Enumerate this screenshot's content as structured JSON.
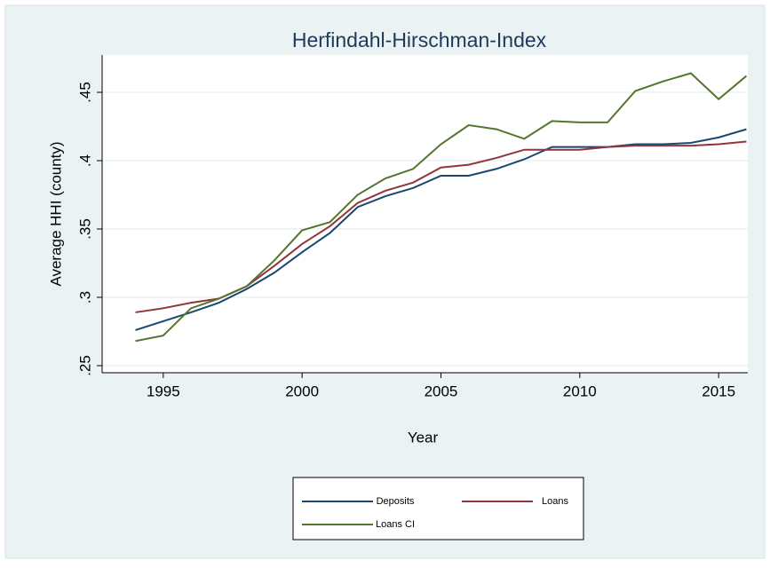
{
  "chart_data": {
    "type": "line",
    "title": "Herfindahl-Hirschman-Index",
    "x_label": "Year",
    "y_label": "Average HHI (county)",
    "x": [
      1994,
      1995,
      1996,
      1997,
      1998,
      1999,
      2000,
      2001,
      2002,
      2003,
      2004,
      2005,
      2006,
      2007,
      2008,
      2009,
      2010,
      2011,
      2012,
      2013,
      2014,
      2015,
      2016
    ],
    "series": [
      {
        "name": "Deposits",
        "color": "#1a476f",
        "values": [
          0.276,
          0.2825,
          0.289,
          0.296,
          0.306,
          0.318,
          0.333,
          0.347,
          0.366,
          0.374,
          0.38,
          0.389,
          0.389,
          0.394,
          0.401,
          0.41,
          0.41,
          0.41,
          0.412,
          0.412,
          0.413,
          0.417,
          0.423
        ]
      },
      {
        "name": "Loans",
        "color": "#90353b",
        "values": [
          0.289,
          0.292,
          0.296,
          0.299,
          0.308,
          0.323,
          0.339,
          0.352,
          0.369,
          0.378,
          0.384,
          0.395,
          0.397,
          0.402,
          0.408,
          0.408,
          0.408,
          0.41,
          0.411,
          0.411,
          0.411,
          0.412,
          0.414
        ]
      },
      {
        "name": "Loans CI",
        "color": "#55752f",
        "values": [
          0.268,
          0.272,
          0.292,
          0.299,
          0.308,
          0.327,
          0.349,
          0.355,
          0.375,
          0.387,
          0.394,
          0.412,
          0.426,
          0.423,
          0.416,
          0.429,
          0.428,
          0.428,
          0.451,
          0.458,
          0.464,
          0.445,
          0.462
        ]
      }
    ],
    "xlim": [
      1992.8,
      2016.05
    ],
    "xticks": [
      1995,
      2000,
      2005,
      2010,
      2015
    ],
    "ylim": [
      0.2448,
      0.4773
    ],
    "yticks": [
      {
        "value": 0.25,
        "label": ".25"
      },
      {
        "value": 0.3,
        "label": ".3"
      },
      {
        "value": 0.35,
        "label": ".35"
      },
      {
        "value": 0.4,
        "label": ".4"
      },
      {
        "value": 0.45,
        "label": ".45"
      }
    ],
    "grid": true
  }
}
